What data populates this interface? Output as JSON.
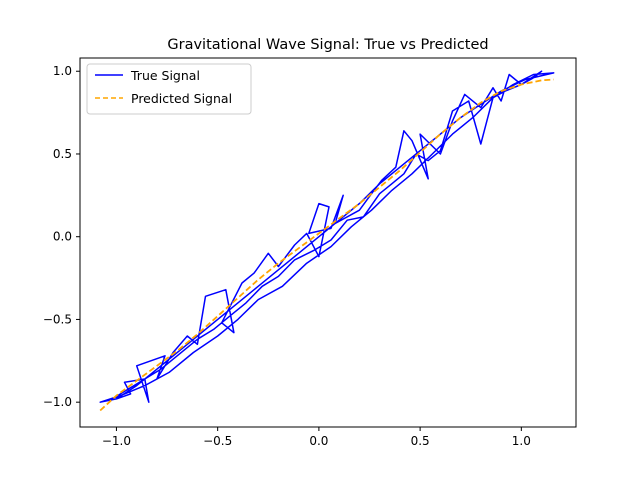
{
  "chart_data": {
    "type": "line",
    "title": "Gravitational Wave Signal: True vs Predicted",
    "xlabel": "",
    "ylabel": "",
    "xlim": [
      -1.18,
      1.27
    ],
    "ylim": [
      -1.15,
      1.08
    ],
    "xticks": [
      -1.0,
      -0.5,
      0.0,
      0.5,
      1.0
    ],
    "xtick_labels": [
      "−1.0",
      "−0.5",
      "0.0",
      "0.5",
      "1.0"
    ],
    "yticks": [
      -1.0,
      -0.5,
      0.0,
      0.5,
      1.0
    ],
    "ytick_labels": [
      "−1.0",
      "−0.5",
      "0.0",
      "0.5",
      "1.0"
    ],
    "grid": false,
    "legend_position": "top-left",
    "series": [
      {
        "name": "True Signal",
        "color": "#0000ff",
        "style": "solid",
        "x": [
          -1.08,
          -1.0,
          -0.93,
          -0.96,
          -0.86,
          -0.84,
          -0.9,
          -0.76,
          -0.8,
          -0.72,
          -0.65,
          -0.6,
          -0.56,
          -0.46,
          -0.42,
          -0.48,
          -0.38,
          -0.32,
          -0.25,
          -0.2,
          -0.12,
          -0.06,
          0.0,
          0.05,
          0.0,
          -0.05,
          0.06,
          0.12,
          0.08,
          0.2,
          0.26,
          0.31,
          0.38,
          0.42,
          0.46,
          0.54,
          0.5,
          0.6,
          0.66,
          0.72,
          0.8,
          0.86,
          0.9,
          0.94,
          1.0,
          1.06,
          1.1,
          1.0,
          0.92,
          0.86,
          0.8,
          0.74,
          0.66,
          0.6,
          0.54,
          0.48,
          0.42,
          0.36,
          0.3,
          0.22,
          0.14,
          0.06,
          -0.02,
          -0.12,
          -0.2,
          -0.28,
          -0.36,
          -0.44,
          -0.52,
          -0.6,
          -0.7,
          -0.78,
          -0.86,
          -0.94,
          -1.02,
          -1.08,
          -0.98,
          -0.86,
          -0.74,
          -0.62,
          -0.5,
          -0.4,
          -0.3,
          -0.18,
          -0.06,
          0.06,
          0.16,
          0.26,
          0.36,
          0.46,
          0.56,
          0.66,
          0.76,
          0.86,
          0.96,
          1.06,
          1.16,
          1.02,
          0.9,
          0.8,
          0.7,
          0.6,
          0.5,
          0.4,
          0.3,
          0.2,
          0.1,
          0.0,
          -0.1,
          -0.2,
          -0.3,
          -0.42,
          -0.54,
          -0.66,
          -0.78,
          -0.9,
          -1.0
        ],
        "y": [
          -1.0,
          -0.98,
          -0.95,
          -0.88,
          -0.86,
          -1.0,
          -0.78,
          -0.72,
          -0.86,
          -0.7,
          -0.6,
          -0.65,
          -0.36,
          -0.32,
          -0.58,
          -0.52,
          -0.28,
          -0.22,
          -0.1,
          -0.18,
          -0.05,
          0.02,
          -0.12,
          0.18,
          0.2,
          0.02,
          0.05,
          0.25,
          0.08,
          0.16,
          0.26,
          0.34,
          0.42,
          0.64,
          0.58,
          0.35,
          0.62,
          0.5,
          0.7,
          0.86,
          0.78,
          0.9,
          0.82,
          0.98,
          0.92,
          0.96,
          1.0,
          0.92,
          0.88,
          0.84,
          0.56,
          0.82,
          0.76,
          0.52,
          0.46,
          0.5,
          0.38,
          0.32,
          0.26,
          0.12,
          0.1,
          -0.02,
          -0.08,
          -0.14,
          -0.24,
          -0.3,
          -0.4,
          -0.48,
          -0.56,
          -0.62,
          -0.72,
          -0.8,
          -0.86,
          -0.92,
          -0.98,
          -1.0,
          -0.96,
          -0.9,
          -0.82,
          -0.7,
          -0.6,
          -0.5,
          -0.38,
          -0.3,
          -0.16,
          -0.06,
          0.06,
          0.16,
          0.28,
          0.38,
          0.5,
          0.62,
          0.72,
          0.84,
          0.92,
          0.98,
          0.99,
          0.95,
          0.88,
          0.8,
          0.72,
          0.62,
          0.52,
          0.42,
          0.32,
          0.2,
          0.1,
          0.0,
          -0.1,
          -0.2,
          -0.3,
          -0.42,
          -0.54,
          -0.66,
          -0.78,
          -0.9,
          -0.98
        ]
      },
      {
        "name": "Predicted Signal",
        "color": "#ffa500",
        "style": "dashed",
        "x": [
          -1.08,
          -1.0,
          -0.9,
          -0.8,
          -0.7,
          -0.6,
          -0.5,
          -0.4,
          -0.3,
          -0.2,
          -0.1,
          0.0,
          0.1,
          0.2,
          0.3,
          0.4,
          0.5,
          0.6,
          0.7,
          0.8,
          0.9,
          1.0,
          1.1,
          1.16
        ],
        "y": [
          -1.05,
          -0.96,
          -0.87,
          -0.78,
          -0.69,
          -0.59,
          -0.48,
          -0.37,
          -0.26,
          -0.16,
          -0.07,
          0.02,
          0.11,
          0.2,
          0.3,
          0.4,
          0.51,
          0.62,
          0.72,
          0.81,
          0.88,
          0.92,
          0.945,
          0.95
        ]
      }
    ]
  }
}
